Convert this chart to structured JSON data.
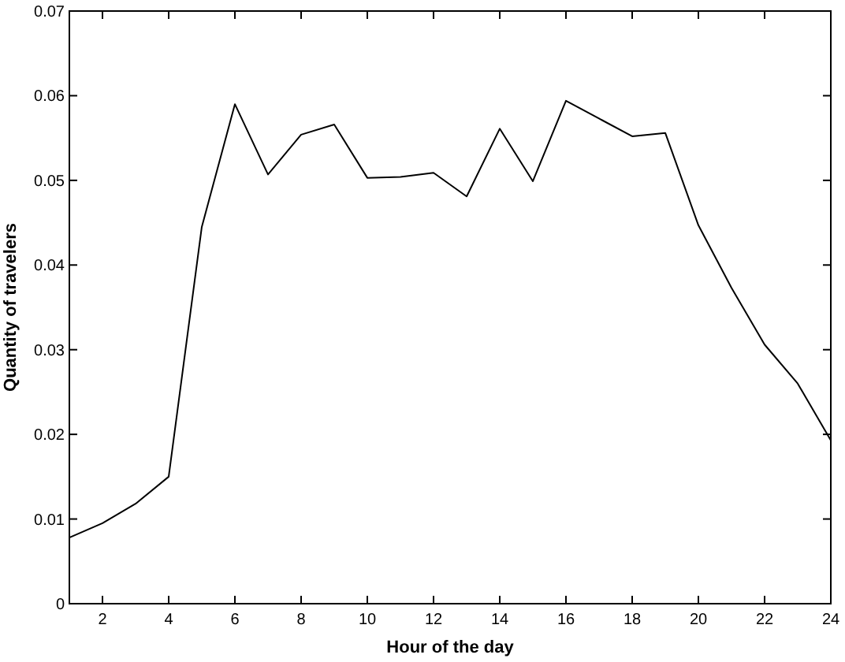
{
  "chart_data": {
    "type": "line",
    "xlabel": "Hour of the day",
    "ylabel": "Quantity of travelers",
    "x": [
      1,
      2,
      3,
      4,
      5,
      6,
      7,
      8,
      9,
      10,
      11,
      12,
      13,
      14,
      15,
      16,
      17,
      18,
      19,
      20,
      21,
      22,
      23,
      24
    ],
    "series": [
      {
        "color": "#000000",
        "values": [
          0.0078,
          0.0095,
          0.0118,
          0.015,
          0.0445,
          0.059,
          0.0507,
          0.0554,
          0.0566,
          0.0503,
          0.0504,
          0.0509,
          0.0481,
          0.0561,
          0.0499,
          0.0594,
          0.0573,
          0.0552,
          0.0556,
          0.0447,
          0.0373,
          0.0306,
          0.026,
          0.0193
        ]
      }
    ],
    "xlim": [
      1,
      24
    ],
    "xticks": [
      2,
      4,
      6,
      8,
      10,
      12,
      14,
      16,
      18,
      20,
      22,
      24
    ],
    "ylim": [
      0,
      0.07
    ],
    "yticks": [
      0,
      0.01,
      0.02,
      0.03,
      0.04,
      0.05,
      0.06,
      0.07
    ],
    "grid": false,
    "marker": "none",
    "line_style": "solid"
  }
}
